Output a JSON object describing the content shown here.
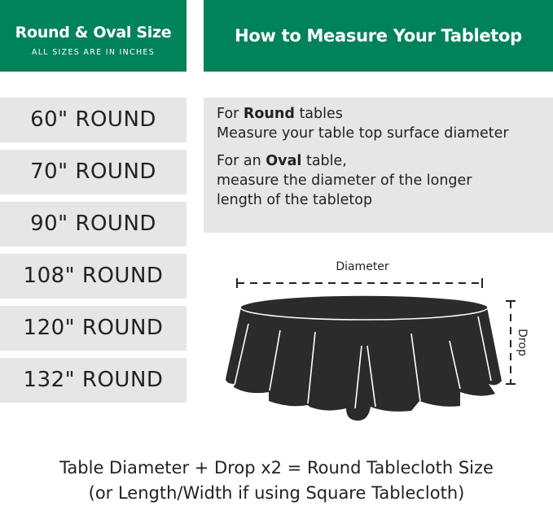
{
  "left_header": {
    "title": "Round & Oval Size",
    "subtitle": "ALL SIZES ARE IN INCHES"
  },
  "right_header": {
    "title": "How to Measure Your Tabletop"
  },
  "sizes": [
    "60\" ROUND",
    "70\" ROUND",
    "90\" ROUND",
    "108\" ROUND",
    "120\" ROUND",
    "132\" ROUND"
  ],
  "instructions": {
    "round": {
      "pre": "For ",
      "bold": "Round",
      "post": " tables",
      "line2": "Measure your table top surface diameter"
    },
    "oval": {
      "pre": "For an ",
      "bold": "Oval",
      "post": " table,",
      "line2": "measure the diameter of the longer",
      "line3": "length of the tabletop"
    }
  },
  "diagram": {
    "diameter_label": "Diameter",
    "drop_label": "Drop",
    "cloth_color": "#2b2b2b"
  },
  "footer": {
    "line1": "Table Diameter + Drop x2 = Round Tablecloth Size",
    "line2": "(or Length/Width if using Square Tablecloth)"
  },
  "colors": {
    "brand_green": "#00825a",
    "panel_gray": "#e6e6e6"
  }
}
